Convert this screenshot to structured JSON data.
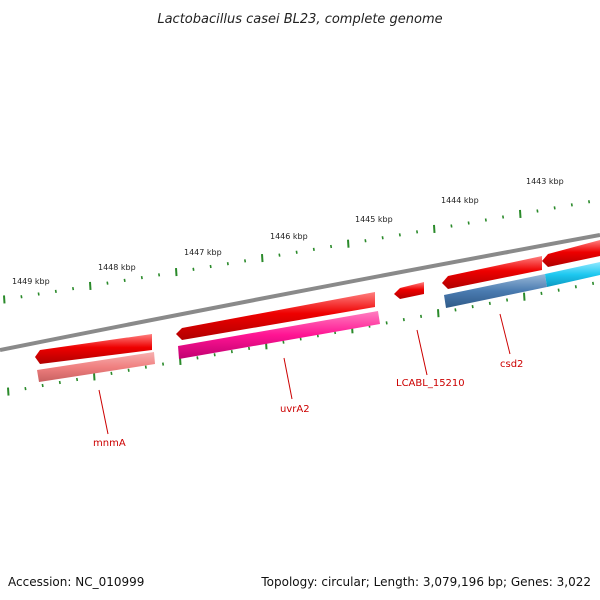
{
  "title": "Lactobacillus casei BL23, complete genome",
  "footer": {
    "accession": "Accession: NC_010999",
    "summary": "Topology: circular; Length: 3,079,196 bp; Genes: 3,022"
  },
  "colors": {
    "backbone": "#8a8a8a",
    "tick": "#2a8a2a",
    "label": "#cc0000",
    "cds": "#ee0000",
    "mnmA": "#f08080",
    "uvrA2": "#ff1493",
    "csd2": "#4a7bb0",
    "next": "#1ec8f0"
  },
  "scale": {
    "top_labels": [
      "1449 kbp",
      "1448 kbp",
      "1447 kbp",
      "1446 kbp",
      "1445 kbp",
      "1444 kbp",
      "1443 kbp"
    ]
  },
  "genes": [
    {
      "name": "mnmA",
      "label": "mnmA"
    },
    {
      "name": "uvrA2",
      "label": "uvrA2"
    },
    {
      "name": "LCABL_15210",
      "label": "LCABL_15210"
    },
    {
      "name": "csd2",
      "label": "csd2"
    }
  ]
}
